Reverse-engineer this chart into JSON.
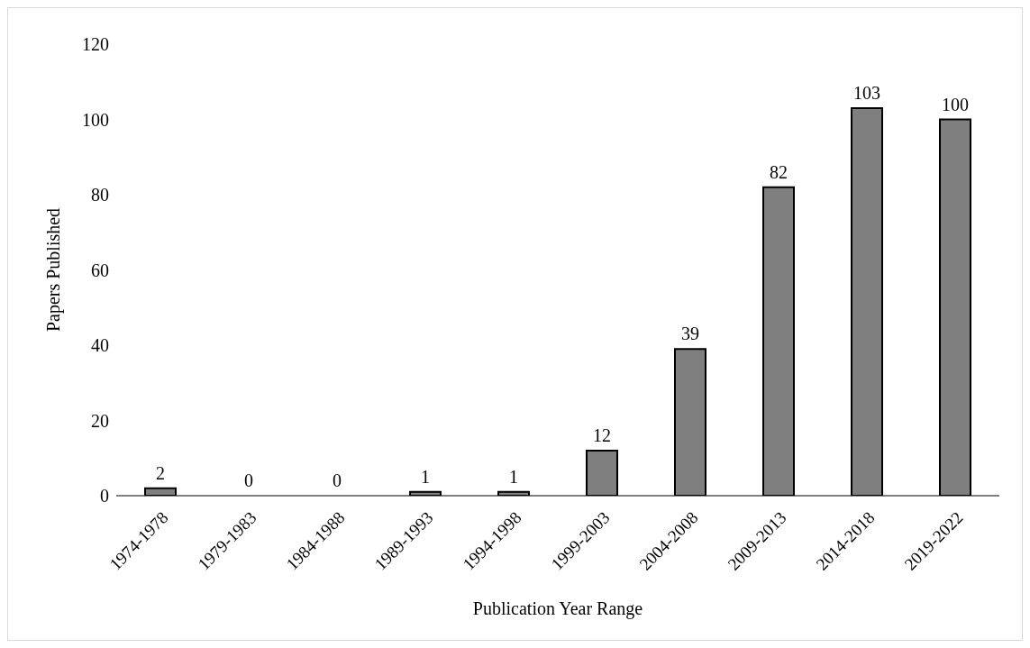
{
  "chart_data": {
    "type": "bar",
    "xlabel": "Publication Year Range",
    "ylabel": "Papers Published",
    "categories": [
      "1974-1978",
      "1979-1983",
      "1984-1988",
      "1989-1993",
      "1994-1998",
      "1999-2003",
      "2004-2008",
      "2009-2013",
      "2014-2018",
      "2019-2022"
    ],
    "values": [
      2,
      0,
      0,
      1,
      1,
      12,
      39,
      82,
      103,
      100
    ],
    "color": "#7f7f7f",
    "ylim": [
      0,
      120
    ],
    "yticks": [
      0,
      20,
      40,
      60,
      80,
      100,
      120
    ],
    "data_labels": true,
    "grid": false,
    "legend": false
  }
}
